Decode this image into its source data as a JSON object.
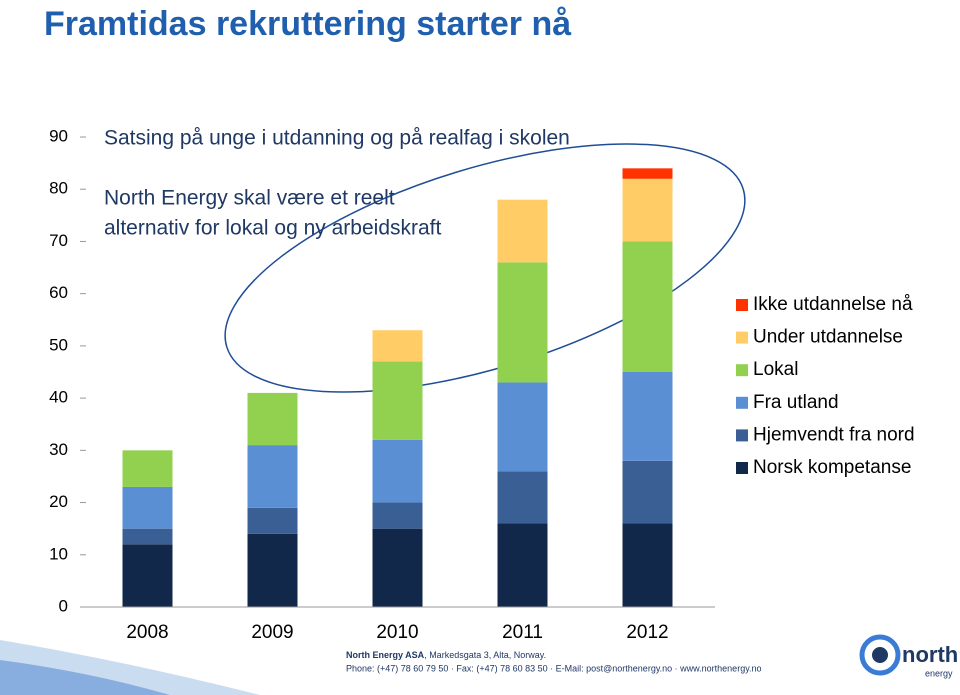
{
  "chart_data": {
    "type": "stacked-bar",
    "title": "Framtidas rekruttering starter nå",
    "annotations": [
      "Satsing på unge i utdanning og på realfag i skolen",
      "North Energy skal være et reelt",
      "alternativ for lokal og ny arbeidskraft"
    ],
    "categories": [
      "2008",
      "2009",
      "2010",
      "2011",
      "2012"
    ],
    "series": [
      {
        "name": "Norsk kompetanse",
        "color": "#12284a",
        "values": [
          12,
          14,
          15,
          16,
          16
        ]
      },
      {
        "name": "Hjemvendt fra nord",
        "color": "#3a5f94",
        "values": [
          3,
          5,
          5,
          10,
          12
        ]
      },
      {
        "name": "Fra utland",
        "color": "#5b8fd4",
        "values": [
          8,
          12,
          12,
          17,
          17
        ]
      },
      {
        "name": "Lokal",
        "color": "#92d050",
        "values": [
          7,
          10,
          15,
          23,
          25
        ]
      },
      {
        "name": "Under utdannelse",
        "color": "#ffcc66",
        "values": [
          null,
          null,
          6,
          12,
          12
        ]
      },
      {
        "name": "Ikke utdannelse nå",
        "color": "#ff3300",
        "values": [
          null,
          null,
          null,
          null,
          2
        ]
      }
    ],
    "ylim": [
      0,
      90
    ],
    "yticks": [
      0,
      10,
      20,
      30,
      40,
      50,
      60,
      70,
      80,
      90
    ]
  },
  "footer": {
    "company": "North Energy ASA",
    "address": ", Markedsgata 3, Alta, Norway.",
    "contact": "Phone: (+47) 78 60 79 50  · Fax: (+47) 78 60 83 50  · E-Mail: post@northenergy.no ·  www.northenergy.no"
  },
  "logo": {
    "name": "north",
    "sub": "energy"
  }
}
